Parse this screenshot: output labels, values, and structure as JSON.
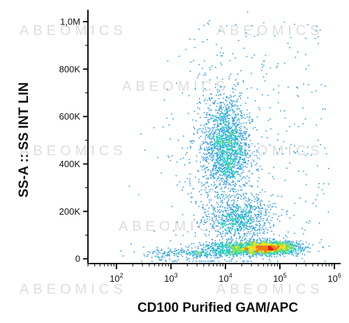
{
  "watermark": "ABEOMICS",
  "chart_data": {
    "type": "scatter",
    "style": "flow cytometry density dot plot (pseudocolor)",
    "xlabel": "CD100 Purified GAM/APC",
    "ylabel": "SS-A :: SS INT LIN",
    "x_scale": "log",
    "y_scale": "linear",
    "xlim": [
      30,
      1300000
    ],
    "ylim": [
      -20000,
      1050000
    ],
    "x_ticks": [
      100,
      1000,
      10000,
      100000,
      1000000
    ],
    "x_tick_labels": [
      {
        "base": "10",
        "exp": "2"
      },
      {
        "base": "10",
        "exp": "3"
      },
      {
        "base": "10",
        "exp": "4"
      },
      {
        "base": "10",
        "exp": "5"
      },
      {
        "base": "10",
        "exp": "6"
      }
    ],
    "y_ticks": [
      0,
      200000,
      400000,
      600000,
      800000,
      1000000
    ],
    "y_tick_labels": [
      "0",
      "200K",
      "400K",
      "600K",
      "800K",
      "1,0M"
    ],
    "density_colors": [
      "#1010c8",
      "#2a9ae8",
      "#20d0b8",
      "#7ee04a",
      "#f0e020",
      "#f07818",
      "#e01818"
    ],
    "populations": [
      {
        "x_center": 60000,
        "x_spread_decades": 0.28,
        "y_center": 48000,
        "y_spread": 14000,
        "relative_count": 1600
      },
      {
        "x_center": 12000,
        "x_spread_decades": 0.3,
        "y_center": 45000,
        "y_spread": 16000,
        "relative_count": 500
      },
      {
        "x_center": 18000,
        "x_spread_decades": 0.28,
        "y_center": 170000,
        "y_spread": 45000,
        "relative_count": 700
      },
      {
        "x_center": 10000,
        "x_spread_decades": 0.2,
        "y_center": 480000,
        "y_spread": 100000,
        "relative_count": 1500
      },
      {
        "x_center": 2500,
        "x_spread_decades": 0.45,
        "y_center": 25000,
        "y_spread": 12000,
        "relative_count": 250
      },
      {
        "x_center": 8000,
        "x_spread_decades": 0.6,
        "y_center": 350000,
        "y_spread": 250000,
        "relative_count": 450
      }
    ]
  }
}
